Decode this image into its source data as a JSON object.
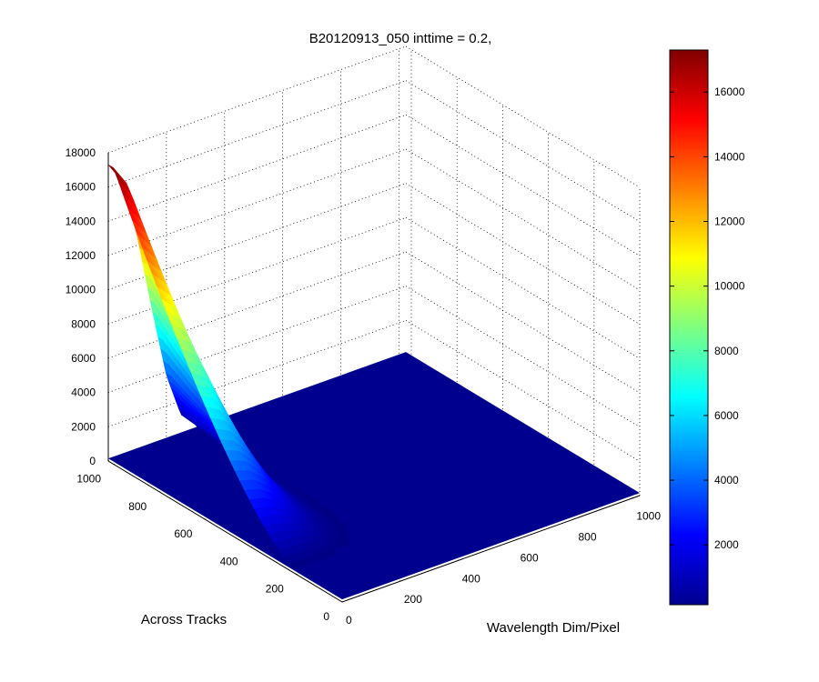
{
  "chart_data": {
    "type": "surface",
    "title": "B20120913_050 inttime = 0.2,",
    "xlabel": "Wavelength Dim/Pixel",
    "ylabel": "Across Tracks",
    "zlabel": "",
    "xlim": [
      0,
      1024
    ],
    "ylim": [
      0,
      1024
    ],
    "zlim": [
      0,
      18000
    ],
    "x_ticks": [
      "0",
      "200",
      "400",
      "600",
      "800",
      "1000"
    ],
    "y_ticks": [
      "0",
      "200",
      "400",
      "600",
      "800",
      "1000"
    ],
    "z_ticks": [
      "0",
      "2000",
      "4000",
      "6000",
      "8000",
      "10000",
      "12000",
      "14000",
      "16000",
      "18000"
    ],
    "grid": true,
    "colormap": "jet",
    "colorbar": {
      "range": [
        150,
        17300
      ],
      "ticks": [
        "2000",
        "4000",
        "6000",
        "8000",
        "10000",
        "12000",
        "14000",
        "16000"
      ]
    },
    "surface": {
      "description": "Spectral response: for each across-track row the counts vary along wavelength; signal confined to low-wavelength pixels and rows.",
      "peak_value": 17300,
      "peak_location": {
        "wavelength_pixel": 0,
        "across_track": 1000
      },
      "background_value": 150,
      "profile_at_wavelength": [
        {
          "wavelength_pixel": 0,
          "across_track_max_value": 17300
        },
        {
          "wavelength_pixel": 50,
          "across_track_max_value": 16000
        },
        {
          "wavelength_pixel": 100,
          "across_track_max_value": 12500
        },
        {
          "wavelength_pixel": 150,
          "across_track_max_value": 8000
        },
        {
          "wavelength_pixel": 200,
          "across_track_max_value": 3800
        },
        {
          "wavelength_pixel": 250,
          "across_track_max_value": 1200
        },
        {
          "wavelength_pixel": 300,
          "across_track_max_value": 300
        }
      ]
    }
  }
}
